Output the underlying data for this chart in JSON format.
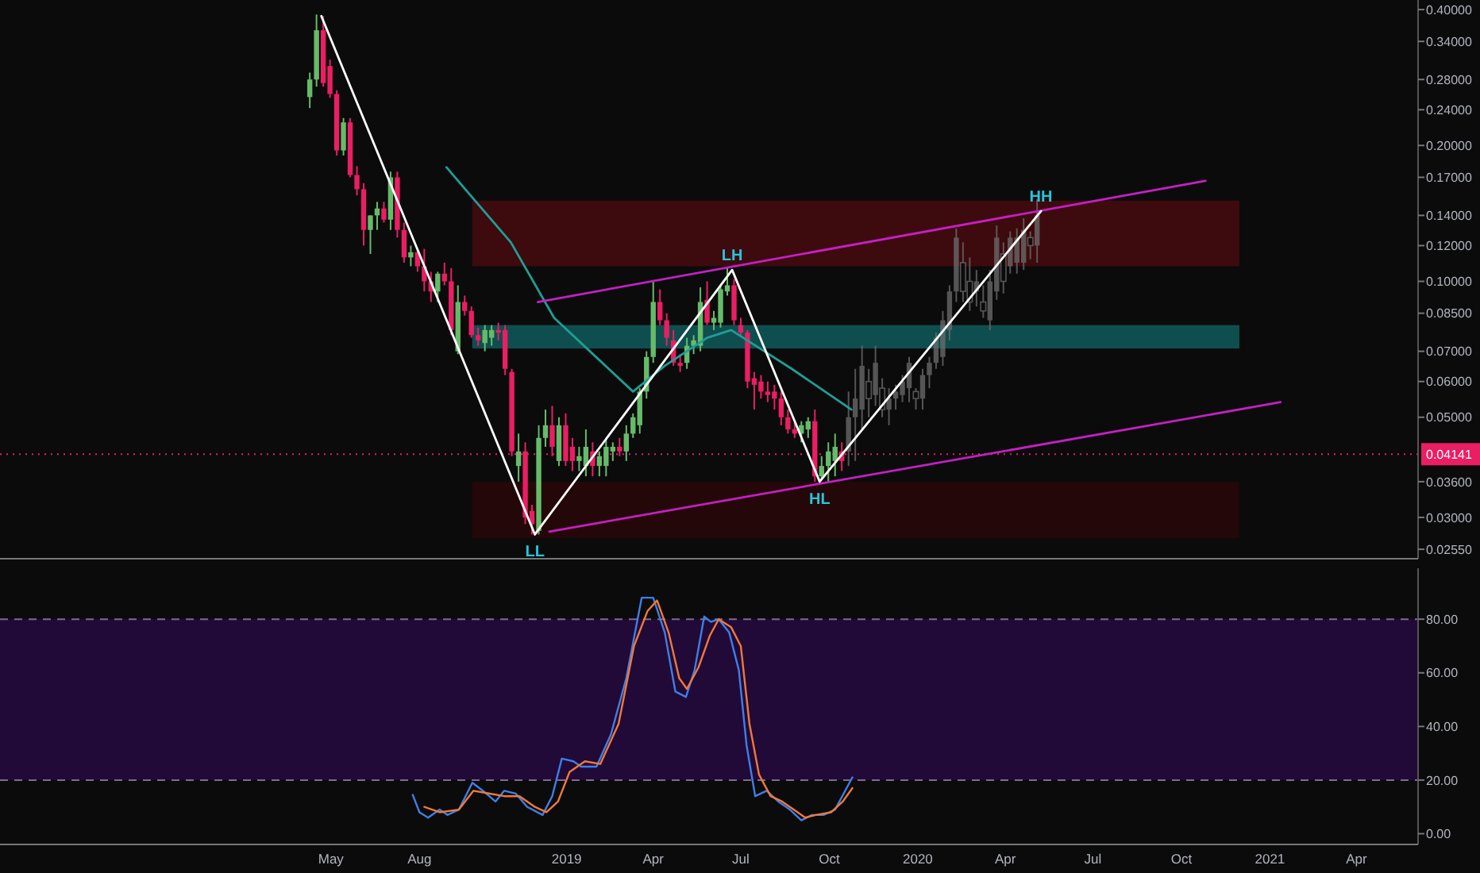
{
  "chart_data": [
    {
      "type": "candlestick",
      "log": true,
      "tick_labels": "y",
      "xlim": [
        "2017-05-22",
        "2021-06-04"
      ],
      "ylim": [
        0.0243,
        0.42
      ],
      "yticks": [
        {
          "value": 0.4,
          "label": "0.40000"
        },
        {
          "value": 0.34,
          "label": "0.34000"
        },
        {
          "value": 0.28,
          "label": "0.28000"
        },
        {
          "value": 0.24,
          "label": "0.24000"
        },
        {
          "value": 0.2,
          "label": "0.20000"
        },
        {
          "value": 0.17,
          "label": "0.17000"
        },
        {
          "value": 0.14,
          "label": "0.14000"
        },
        {
          "value": 0.12,
          "label": "0.12000"
        },
        {
          "value": 0.1,
          "label": "0.10000"
        },
        {
          "value": 0.085,
          "label": "0.08500"
        },
        {
          "value": 0.07,
          "label": "0.07000"
        },
        {
          "value": 0.06,
          "label": "0.06000"
        },
        {
          "value": 0.05,
          "label": "0.05000"
        },
        {
          "value": 0.036,
          "label": "0.03600"
        },
        {
          "value": 0.03,
          "label": "0.03000"
        },
        {
          "value": 0.0255,
          "label": "0.02550"
        }
      ],
      "bands": [
        {
          "axis": "y",
          "from": 0.108,
          "to": 0.151,
          "color": "#3d0a0e"
        },
        {
          "axis": "y",
          "from": 0.071,
          "to": 0.08,
          "color": "#0f4e4e"
        },
        {
          "axis": "y",
          "from": 0.027,
          "to": 0.036,
          "color": "#240708"
        }
      ],
      "ref_lines": [
        {
          "axis": "y",
          "value": 0.04141,
          "label": "0.04141",
          "color": "#e91e63",
          "line_style": "dotted"
        }
      ],
      "series": [
        {
          "colors": [
            "#66bb6a",
            "#66bb6a",
            "#e91e63",
            "#e91e63",
            "#e91e63",
            "#66bb6a",
            "#e91e63",
            "#e91e63",
            "#e91e63",
            "#66bb6a",
            "#66bb6a",
            "#e91e63",
            "#66bb6a",
            "#e91e63",
            "#e91e63",
            "#66bb6a",
            "#e91e63",
            "#e91e63",
            "#e91e63",
            "#66bb6a",
            "#e91e63",
            "#e91e63",
            "#66bb6a",
            "#e91e63",
            "#e91e63",
            "#e91e63",
            "#66bb6a",
            "#66bb6a",
            "#e91e63",
            "#e91e63",
            "#e91e63",
            "#66bb6a",
            "#e91e63",
            "#e91e63",
            "#66bb6a",
            "#66bb6a",
            "#e91e63",
            "#66bb6a",
            "#e91e63",
            "#e91e63",
            "#66bb6a",
            "#66bb6a",
            "#e91e63",
            "#66bb6a",
            "#66bb6a",
            "#66bb6a",
            "#e91e63",
            "#66bb6a",
            "#66bb6a",
            "#66bb6a",
            "#66bb6a",
            "#66bb6a",
            "#e91e63",
            "#e91e63",
            "#e91e63",
            "#e91e63",
            "#66bb6a",
            "#66bb6a",
            "#66bb6a",
            "#e91e63",
            "#66bb6a",
            "#66bb6a",
            "#66bb6a",
            "#e91e63",
            "#e91e63",
            "#e91e63",
            "#e91e63",
            "#e91e63",
            "#e91e63",
            "#e91e63",
            "#e91e63",
            "#e91e63",
            "#e91e63",
            "#66bb6a",
            "#66bb6a",
            "#e91e63",
            "#66bb6a",
            "#66bb6a",
            "#66bb6a",
            "#e91e63"
          ],
          "x": [
            "2018-04-09",
            "2018-04-16",
            "2018-04-23",
            "2018-04-30",
            "2018-05-07",
            "2018-05-14",
            "2018-05-21",
            "2018-05-28",
            "2018-06-04",
            "2018-06-11",
            "2018-06-18",
            "2018-06-25",
            "2018-07-02",
            "2018-07-09",
            "2018-07-16",
            "2018-07-23",
            "2018-07-30",
            "2018-08-06",
            "2018-08-13",
            "2018-08-20",
            "2018-08-27",
            "2018-09-03",
            "2018-09-10",
            "2018-09-17",
            "2018-09-24",
            "2018-10-01",
            "2018-10-08",
            "2018-10-15",
            "2018-10-22",
            "2018-10-29",
            "2018-11-05",
            "2018-11-12",
            "2018-11-19",
            "2018-11-26",
            "2018-12-03",
            "2018-12-10",
            "2018-12-17",
            "2018-12-24",
            "2018-12-31",
            "2019-01-07",
            "2019-01-14",
            "2019-01-21",
            "2019-01-28",
            "2019-02-04",
            "2019-02-11",
            "2019-02-18",
            "2019-02-25",
            "2019-03-04",
            "2019-03-11",
            "2019-03-18",
            "2019-03-25",
            "2019-04-01",
            "2019-04-08",
            "2019-04-15",
            "2019-04-22",
            "2019-04-29",
            "2019-05-06",
            "2019-05-13",
            "2019-05-20",
            "2019-05-27",
            "2019-06-03",
            "2019-06-10",
            "2019-06-17",
            "2019-06-24",
            "2019-07-01",
            "2019-07-08",
            "2019-07-15",
            "2019-07-22",
            "2019-07-29",
            "2019-08-05",
            "2019-08-12",
            "2019-08-19",
            "2019-08-26",
            "2019-09-02",
            "2019-09-09",
            "2019-09-16",
            "2019-09-23",
            "2019-09-30",
            "2019-10-07",
            "2019-10-14"
          ],
          "ohlc": [
            [
              0.256,
              0.29,
              0.242,
              0.28
            ],
            [
              0.28,
              0.39,
              0.27,
              0.36
            ],
            [
              0.36,
              0.387,
              0.27,
              0.275
            ],
            [
              0.3,
              0.31,
              0.255,
              0.26
            ],
            [
              0.26,
              0.265,
              0.19,
              0.195
            ],
            [
              0.195,
              0.23,
              0.19,
              0.225
            ],
            [
              0.225,
              0.23,
              0.17,
              0.172
            ],
            [
              0.172,
              0.18,
              0.155,
              0.16
            ],
            [
              0.16,
              0.165,
              0.12,
              0.13
            ],
            [
              0.13,
              0.14,
              0.115,
              0.14
            ],
            [
              0.14,
              0.15,
              0.13,
              0.145
            ],
            [
              0.145,
              0.15,
              0.135,
              0.137
            ],
            [
              0.137,
              0.175,
              0.13,
              0.17
            ],
            [
              0.17,
              0.175,
              0.125,
              0.13
            ],
            [
              0.13,
              0.135,
              0.11,
              0.113
            ],
            [
              0.113,
              0.12,
              0.108,
              0.116
            ],
            [
              0.116,
              0.118,
              0.105,
              0.108
            ],
            [
              0.108,
              0.118,
              0.095,
              0.1
            ],
            [
              0.1,
              0.105,
              0.09,
              0.095
            ],
            [
              0.095,
              0.105,
              0.09,
              0.104
            ],
            [
              0.104,
              0.11,
              0.098,
              0.1
            ],
            [
              0.1,
              0.107,
              0.076,
              0.078
            ],
            [
              0.07,
              0.098,
              0.069,
              0.09
            ],
            [
              0.09,
              0.093,
              0.084,
              0.086
            ],
            [
              0.086,
              0.088,
              0.075,
              0.076
            ],
            [
              0.076,
              0.079,
              0.072,
              0.074
            ],
            [
              0.073,
              0.08,
              0.07,
              0.078
            ],
            [
              0.075,
              0.08,
              0.072,
              0.078
            ],
            [
              0.078,
              0.081,
              0.074,
              0.077
            ],
            [
              0.078,
              0.08,
              0.062,
              0.064
            ],
            [
              0.063,
              0.064,
              0.041,
              0.042
            ],
            [
              0.039,
              0.046,
              0.036,
              0.042
            ],
            [
              0.042,
              0.044,
              0.029,
              0.03
            ],
            [
              0.031,
              0.032,
              0.0275,
              0.029
            ],
            [
              0.028,
              0.048,
              0.0275,
              0.045
            ],
            [
              0.045,
              0.052,
              0.043,
              0.048
            ],
            [
              0.048,
              0.053,
              0.041,
              0.043
            ],
            [
              0.04,
              0.05,
              0.039,
              0.048
            ],
            [
              0.048,
              0.051,
              0.039,
              0.04
            ],
            [
              0.043,
              0.045,
              0.038,
              0.04
            ],
            [
              0.04,
              0.043,
              0.038,
              0.041
            ],
            [
              0.039,
              0.047,
              0.037,
              0.043
            ],
            [
              0.042,
              0.044,
              0.037,
              0.039
            ],
            [
              0.039,
              0.042,
              0.037,
              0.041
            ],
            [
              0.039,
              0.045,
              0.037,
              0.043
            ],
            [
              0.042,
              0.044,
              0.04,
              0.043
            ],
            [
              0.043,
              0.045,
              0.041,
              0.042
            ],
            [
              0.042,
              0.048,
              0.04,
              0.046
            ],
            [
              0.046,
              0.051,
              0.045,
              0.05
            ],
            [
              0.048,
              0.058,
              0.046,
              0.057
            ],
            [
              0.057,
              0.07,
              0.055,
              0.068
            ],
            [
              0.068,
              0.1,
              0.066,
              0.09
            ],
            [
              0.09,
              0.096,
              0.08,
              0.082
            ],
            [
              0.082,
              0.085,
              0.072,
              0.075
            ],
            [
              0.074,
              0.078,
              0.065,
              0.066
            ],
            [
              0.066,
              0.069,
              0.063,
              0.065
            ],
            [
              0.066,
              0.075,
              0.064,
              0.072
            ],
            [
              0.072,
              0.076,
              0.069,
              0.074
            ],
            [
              0.072,
              0.097,
              0.07,
              0.09
            ],
            [
              0.091,
              0.1,
              0.08,
              0.081
            ],
            [
              0.081,
              0.086,
              0.078,
              0.083
            ],
            [
              0.081,
              0.098,
              0.079,
              0.096
            ],
            [
              0.095,
              0.107,
              0.093,
              0.098
            ],
            [
              0.098,
              0.101,
              0.08,
              0.082
            ],
            [
              0.08,
              0.083,
              0.076,
              0.077
            ],
            [
              0.077,
              0.078,
              0.058,
              0.06
            ],
            [
              0.061,
              0.063,
              0.052,
              0.059
            ],
            [
              0.06,
              0.062,
              0.055,
              0.057
            ],
            [
              0.057,
              0.06,
              0.054,
              0.056
            ],
            [
              0.057,
              0.059,
              0.052,
              0.055
            ],
            [
              0.055,
              0.057,
              0.048,
              0.05
            ],
            [
              0.05,
              0.052,
              0.046,
              0.047
            ],
            [
              0.047,
              0.049,
              0.045,
              0.046
            ],
            [
              0.046,
              0.049,
              0.044,
              0.048
            ],
            [
              0.047,
              0.05,
              0.045,
              0.049
            ],
            [
              0.049,
              0.052,
              0.036,
              0.037
            ],
            [
              0.037,
              0.041,
              0.0365,
              0.039
            ],
            [
              0.039,
              0.044,
              0.036,
              0.042
            ],
            [
              0.04,
              0.046,
              0.037,
              0.043
            ],
            [
              0.042,
              0.044,
              0.038,
              0.04
            ]
          ]
        },
        {
          "color": "#6e6e6e",
          "x": [
            "2019-10-21",
            "2019-10-28",
            "2019-11-04",
            "2019-11-11",
            "2019-11-18",
            "2019-11-25",
            "2019-12-02",
            "2019-12-09",
            "2019-12-16",
            "2019-12-23",
            "2019-12-30",
            "2020-01-06",
            "2020-01-13",
            "2020-01-20",
            "2020-01-27",
            "2020-02-03",
            "2020-02-10",
            "2020-02-17",
            "2020-02-24",
            "2020-03-02",
            "2020-03-09",
            "2020-03-16",
            "2020-03-23",
            "2020-03-30",
            "2020-04-06",
            "2020-04-13",
            "2020-04-20",
            "2020-04-27",
            "2020-05-04"
          ],
          "ohlc": [
            [
              0.042,
              0.057,
              0.039,
              0.05
            ],
            [
              0.05,
              0.064,
              0.04,
              0.055
            ],
            [
              0.052,
              0.072,
              0.047,
              0.065
            ],
            [
              0.06,
              0.064,
              0.05,
              0.055
            ],
            [
              0.056,
              0.072,
              0.053,
              0.066
            ],
            [
              0.058,
              0.061,
              0.05,
              0.052
            ],
            [
              0.052,
              0.058,
              0.048,
              0.055
            ],
            [
              0.055,
              0.059,
              0.052,
              0.057
            ],
            [
              0.056,
              0.062,
              0.054,
              0.06
            ],
            [
              0.058,
              0.068,
              0.054,
              0.066
            ],
            [
              0.057,
              0.058,
              0.052,
              0.055
            ],
            [
              0.055,
              0.064,
              0.052,
              0.062
            ],
            [
              0.062,
              0.068,
              0.058,
              0.066
            ],
            [
              0.066,
              0.077,
              0.064,
              0.075
            ],
            [
              0.068,
              0.086,
              0.065,
              0.082
            ],
            [
              0.078,
              0.098,
              0.074,
              0.095
            ],
            [
              0.095,
              0.131,
              0.09,
              0.125
            ],
            [
              0.11,
              0.122,
              0.09,
              0.095
            ],
            [
              0.1,
              0.113,
              0.086,
              0.09
            ],
            [
              0.095,
              0.106,
              0.088,
              0.1
            ],
            [
              0.09,
              0.098,
              0.083,
              0.086
            ],
            [
              0.082,
              0.106,
              0.078,
              0.1
            ],
            [
              0.095,
              0.133,
              0.091,
              0.125
            ],
            [
              0.115,
              0.122,
              0.094,
              0.1
            ],
            [
              0.108,
              0.129,
              0.104,
              0.125
            ],
            [
              0.11,
              0.131,
              0.104,
              0.125
            ],
            [
              0.11,
              0.138,
              0.106,
              0.13
            ],
            [
              0.125,
              0.129,
              0.112,
              0.12
            ],
            [
              0.12,
              0.152,
              0.11,
              0.14
            ]
          ]
        },
        {
          "type": "line",
          "color": "#1f9e95",
          "x": [
            "2018-08-29",
            "2018-11-04",
            "2018-12-19",
            "2019-03-11",
            "2019-04-13",
            "2019-05-27",
            "2019-06-21",
            "2019-07-21",
            "2019-08-23",
            "2019-10-24"
          ],
          "values": [
            0.179,
            0.122,
            0.083,
            0.057,
            0.065,
            0.075,
            0.078,
            0.071,
            0.064,
            0.052
          ]
        },
        {
          "type": "line",
          "color": "#c51fc5",
          "x": [
            "2018-12-02",
            "2020-10-26"
          ],
          "values": [
            0.09,
            0.167
          ]
        },
        {
          "type": "line",
          "color": "#c51fc5",
          "x": [
            "2018-12-14",
            "2021-01-12"
          ],
          "values": [
            0.0279,
            0.054
          ]
        },
        {
          "type": "line",
          "color": "#ffffff",
          "x": [
            "2018-04-21",
            "2018-11-29",
            "2019-06-22",
            "2019-09-21",
            "2020-05-08"
          ],
          "values": [
            0.387,
            0.0275,
            0.106,
            0.036,
            0.143
          ]
        }
      ],
      "annotations": [
        {
          "text": "LL",
          "x": "2018-11-29",
          "y": 0.0275
        },
        {
          "text": "LH",
          "x": "2019-06-22",
          "y": 0.106
        },
        {
          "text": "HL",
          "x": "2019-09-21",
          "y": 0.036
        },
        {
          "text": "HH",
          "x": "2020-05-08",
          "y": 0.143
        }
      ]
    },
    {
      "type": "line",
      "xlim": [
        "2017-05-22",
        "2021-06-04"
      ],
      "xticks": [
        {
          "value": "2018-05-01",
          "label": "May"
        },
        {
          "value": "2018-08-01",
          "label": "Aug"
        },
        {
          "value": "2019-01-01",
          "label": "2019"
        },
        {
          "value": "2019-04-01",
          "label": "Apr"
        },
        {
          "value": "2019-07-01",
          "label": "Jul"
        },
        {
          "value": "2019-10-01",
          "label": "Oct"
        },
        {
          "value": "2020-01-01",
          "label": "2020"
        },
        {
          "value": "2020-04-01",
          "label": "Apr"
        },
        {
          "value": "2020-07-01",
          "label": "Jul"
        },
        {
          "value": "2020-10-01",
          "label": "Oct"
        },
        {
          "value": "2021-01-01",
          "label": "2021"
        },
        {
          "value": "2021-04-01",
          "label": "Apr"
        }
      ],
      "ylim": [
        -4,
        99
      ],
      "yticks": [
        {
          "value": 0,
          "label": "0.00"
        },
        {
          "value": 20,
          "label": "20.00"
        },
        {
          "value": 40,
          "label": "40.00"
        },
        {
          "value": 60,
          "label": "60.00"
        },
        {
          "value": 80,
          "label": "80.00"
        }
      ],
      "bands": [
        {
          "axis": "y",
          "from": 20,
          "to": 80,
          "color": "#210a38"
        }
      ],
      "ref_lines": [
        {
          "axis": "y",
          "value": 20,
          "color": "#7e6a94",
          "line_style": "dashed"
        },
        {
          "axis": "y",
          "value": 80,
          "color": "#7e6a94",
          "line_style": "dashed"
        }
      ],
      "series": [
        {
          "color": "#3f7fe6",
          "x": [
            "2018-07-25",
            "2018-08-01",
            "2018-08-10",
            "2018-08-22",
            "2018-08-30",
            "2018-09-11",
            "2018-09-25",
            "2018-10-06",
            "2018-10-19",
            "2018-10-28",
            "2018-11-09",
            "2018-11-21",
            "2018-12-07",
            "2018-12-17",
            "2018-12-27",
            "2019-01-08",
            "2019-01-16",
            "2019-02-01",
            "2019-02-16",
            "2019-03-04",
            "2019-03-20",
            "2019-04-01",
            "2019-04-13",
            "2019-04-24",
            "2019-05-05",
            "2019-05-14",
            "2019-05-24",
            "2019-05-31",
            "2019-06-08",
            "2019-06-19",
            "2019-06-29",
            "2019-07-07",
            "2019-07-16",
            "2019-07-28",
            "2019-08-09",
            "2019-08-21",
            "2019-09-02",
            "2019-09-13",
            "2019-09-25",
            "2019-10-07",
            "2019-10-19",
            "2019-10-25"
          ],
          "values": [
            14.5,
            8,
            6,
            9,
            7,
            9,
            19,
            16,
            12,
            16,
            15,
            10,
            7,
            14,
            28,
            27,
            25,
            25,
            37,
            58,
            88,
            88,
            75,
            53,
            51,
            61,
            81,
            79,
            80,
            75,
            61,
            33,
            14,
            16,
            12,
            9,
            5,
            7,
            7,
            9,
            17,
            21
          ]
        },
        {
          "color": "#f0793a",
          "x": [
            "2018-08-06",
            "2018-08-22",
            "2018-09-11",
            "2018-09-26",
            "2018-10-12",
            "2018-10-28",
            "2018-11-13",
            "2018-11-29",
            "2018-12-11",
            "2018-12-23",
            "2019-01-04",
            "2019-01-20",
            "2019-02-05",
            "2019-02-24",
            "2019-03-12",
            "2019-03-26",
            "2019-04-05",
            "2019-04-17",
            "2019-04-28",
            "2019-05-06",
            "2019-05-18",
            "2019-05-30",
            "2019-06-08",
            "2019-06-21",
            "2019-07-01",
            "2019-07-10",
            "2019-07-20",
            "2019-08-01",
            "2019-08-13",
            "2019-08-25",
            "2019-09-06",
            "2019-09-17",
            "2019-10-03",
            "2019-10-15",
            "2019-10-25"
          ],
          "values": [
            10,
            8,
            9,
            16,
            15,
            14,
            14,
            10,
            8,
            12,
            23,
            27,
            26,
            41,
            70,
            83,
            87,
            75,
            58,
            54,
            62,
            74,
            80,
            77,
            70,
            41,
            22,
            14,
            12,
            9,
            6,
            7,
            8,
            12,
            17
          ]
        }
      ]
    }
  ]
}
